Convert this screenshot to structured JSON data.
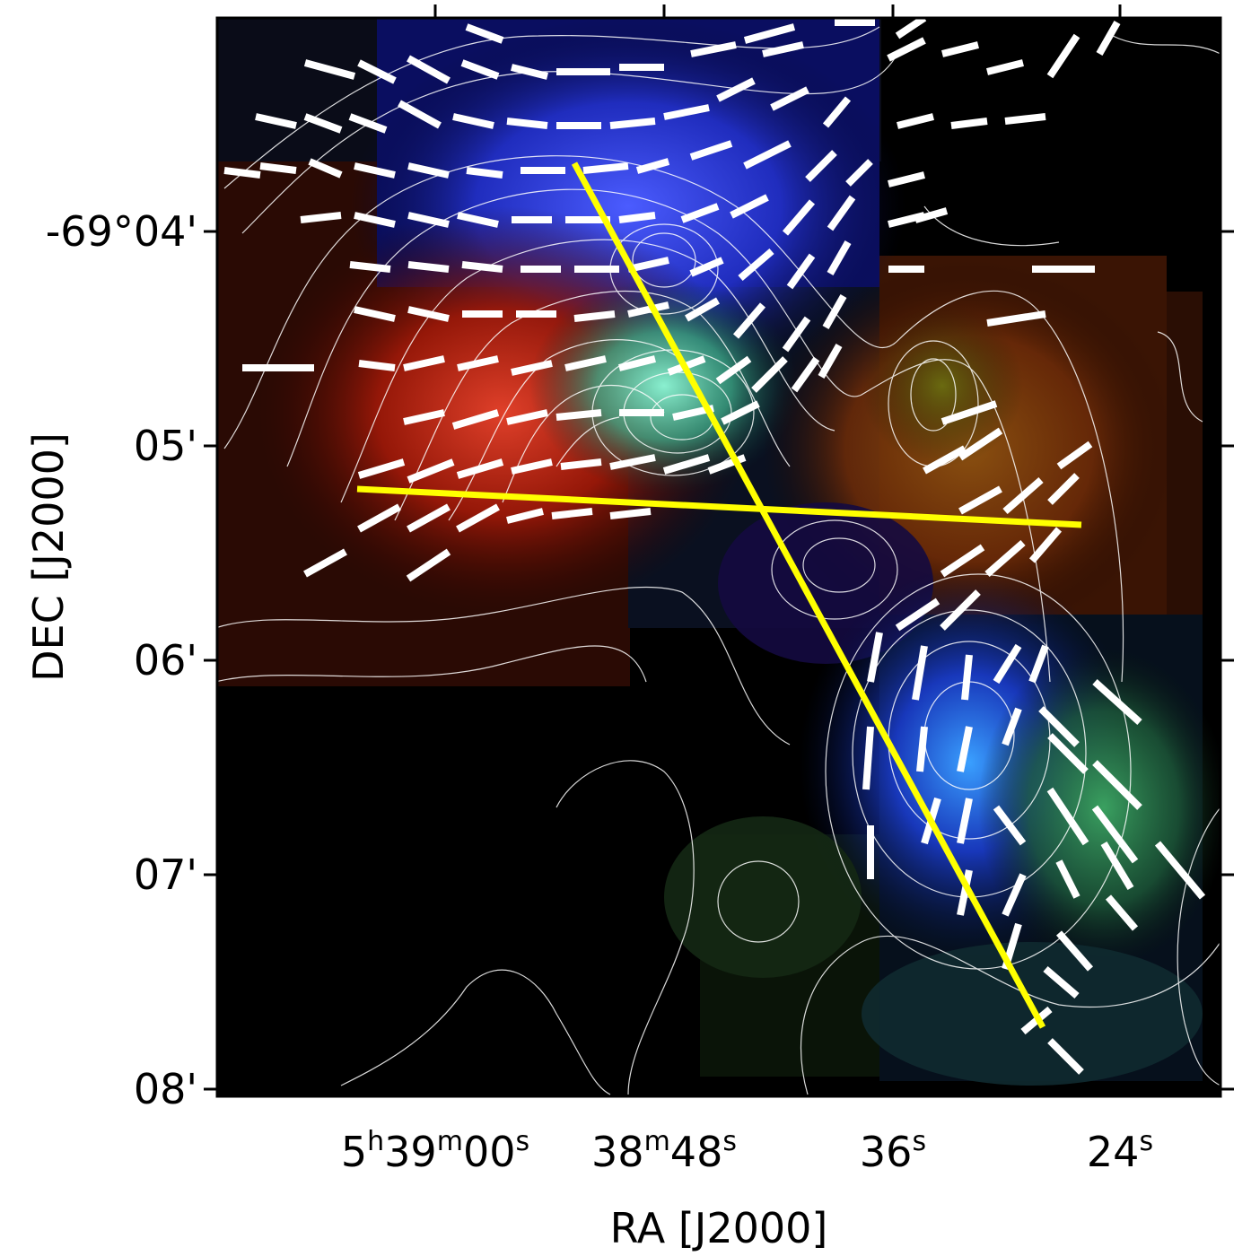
{
  "axes": {
    "x_label": "RA [J2000]",
    "y_label": "DEC [J2000]",
    "x_ticks": [
      {
        "h": "5",
        "hu": "h",
        "m": "39",
        "mu": "m",
        "s": "00",
        "su": "s"
      },
      {
        "m": "38",
        "mu": "m",
        "s": "48",
        "su": "s"
      },
      {
        "s": "36",
        "su": "s"
      },
      {
        "s": "24",
        "su": "s"
      }
    ],
    "y_ticks": [
      "-69°04'",
      "05'",
      "06'",
      "07'",
      "08'"
    ]
  },
  "colors": {
    "background": "#000000",
    "contour": "#ffffff",
    "vectors": "#ffffff",
    "profile_lines": "#ffff00",
    "red_region": "#b01a08",
    "blue_region": "#2a3cff",
    "green_region": "#2e8c4a"
  },
  "image": {
    "description_icons": [
      "polarization-vector",
      "contour-line",
      "yellow-cut-line"
    ]
  }
}
